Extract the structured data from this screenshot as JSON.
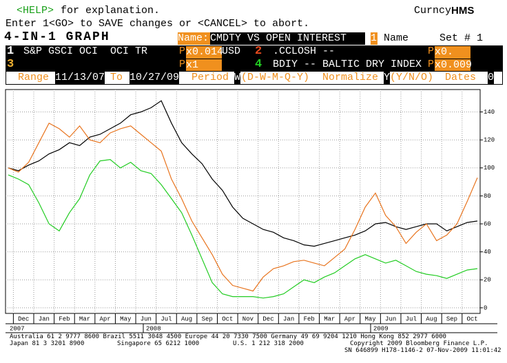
{
  "header": {
    "help_key": "<HELP>",
    "help_text": "for explanation.",
    "enter": "Enter 1<GO> to SAVE changes or <CANCEL> to abort.",
    "brand_a": "Curncy",
    "brand_b": "HMS",
    "title": "4-IN-1 GRAPH",
    "name_label": "Name:",
    "name_value": "CMDTY VS OPEN INTEREST",
    "name_num": "1",
    "name_num_label": "Name",
    "set": "Set # 1"
  },
  "slots": [
    {
      "num": "1",
      "px_label": "P",
      "px": "x0.014",
      "currency": "USD"
    },
    {
      "num": "2",
      "px_label": "P",
      "px": "x0."
    },
    {
      "num": "3",
      "px_label": "P",
      "px": "x1"
    },
    {
      "num": "4",
      "px_label": "P",
      "px": "x0.009"
    }
  ],
  "range": {
    "label": "Range",
    "from": "11/13/07",
    "to_label": "To",
    "to": "10/27/09",
    "period_label": "Period",
    "period": "W",
    "period_opts": "(D-W-M-Q-Y)",
    "normalize_label": "Normalize",
    "normalize": "Y",
    "normalize_opts": "(Y/N/O)",
    "dates_label": "Dates",
    "dates": "0"
  },
  "chart_data": {
    "type": "line",
    "categories": [
      null,
      "Dec",
      null,
      "Jan",
      null,
      "Feb",
      null,
      "Mar",
      null,
      "Apr",
      null,
      "May",
      null,
      "Jun",
      null,
      "Jul",
      null,
      "Aug",
      null,
      "Sep",
      null,
      "Oct",
      null,
      "Nov",
      null,
      "Dec",
      null,
      "Jan",
      null,
      "Feb",
      null,
      "Mar",
      null,
      "Apr",
      null,
      "May",
      null,
      "Jun",
      null,
      "Jul",
      null,
      "Aug",
      null,
      "Sep",
      null,
      "Oct",
      null
    ],
    "year_labels": [
      "2007",
      "2008",
      "2009"
    ],
    "ylim": [
      -4,
      156
    ],
    "yticks": [
      0,
      20,
      40,
      60,
      80,
      100,
      120,
      140
    ],
    "grid": true,
    "series": [
      {
        "name": "S&P GSCI OCI  OCI TR",
        "color": "#000000",
        "values": [
          100,
          98,
          102,
          105,
          110,
          113,
          118,
          116,
          122,
          124,
          128,
          132,
          138,
          140,
          143,
          148,
          132,
          118,
          110,
          103,
          92,
          84,
          72,
          64,
          60,
          56,
          54,
          50,
          48,
          45,
          44,
          46,
          48,
          50,
          52,
          55,
          60,
          61,
          58,
          56,
          58,
          60,
          60,
          55,
          58,
          61,
          62
        ]
      },
      {
        "name": ".CCLOSH --",
        "color": "#e8741e",
        "values": [
          100,
          97,
          104,
          118,
          132,
          128,
          122,
          130,
          120,
          118,
          125,
          128,
          130,
          124,
          118,
          112,
          92,
          78,
          62,
          50,
          38,
          24,
          16,
          14,
          12,
          22,
          28,
          30,
          33,
          34,
          32,
          30,
          36,
          42,
          56,
          72,
          82,
          66,
          58,
          46,
          54,
          60,
          48,
          52,
          60,
          76,
          93
        ]
      },
      {
        "name": "BDIY -- BALTIC DRY INDEX",
        "color": "#22cc22",
        "values": [
          95,
          92,
          88,
          75,
          60,
          55,
          68,
          78,
          95,
          105,
          106,
          100,
          104,
          98,
          96,
          88,
          78,
          68,
          52,
          35,
          18,
          10,
          8,
          8,
          8,
          7,
          8,
          10,
          15,
          20,
          18,
          22,
          25,
          30,
          35,
          38,
          35,
          32,
          34,
          30,
          26,
          24,
          23,
          21,
          24,
          27,
          28
        ]
      }
    ]
  },
  "footer": {
    "line1": "Australia 61 2 9777 8600 Brazil 5511 3048 4500 Europe 44 20 7330 7500 Germany 49 69 9204 1210 Hong Kong 852 2977 6000",
    "japan": "Japan 81 3 3201 8900",
    "singapore": "Singapore 65 6212 1000",
    "us": "U.S. 1 212 318 2000",
    "copyright": "Copyright 2009 Bloomberg Finance L.P.",
    "sn": "SN 646899 H178-1146-2 07-Nov-2009 11:01:42"
  }
}
